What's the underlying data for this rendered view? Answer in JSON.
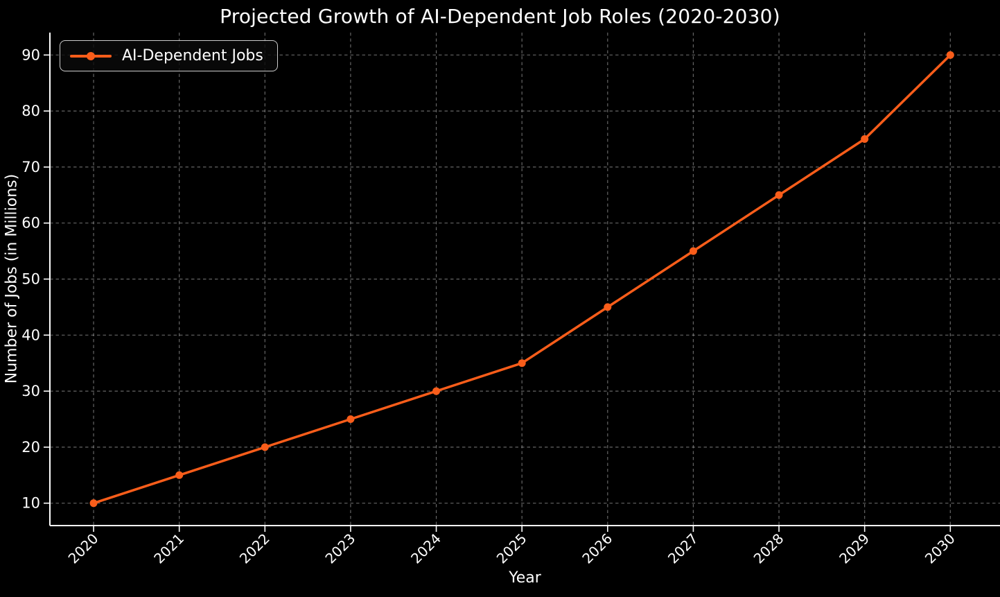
{
  "title": "Projected Growth of AI-Dependent Job Roles (2020-2030)",
  "legend": {
    "label": "AI-Dependent Jobs"
  },
  "chart_data": {
    "type": "line",
    "title": "Projected Growth of AI-Dependent Job Roles (2020-2030)",
    "xlabel": "Year",
    "ylabel": "Number of Jobs (in Millions)",
    "categories": [
      "2020",
      "2021",
      "2022",
      "2023",
      "2024",
      "2025",
      "2026",
      "2027",
      "2028",
      "2029",
      "2030"
    ],
    "series": [
      {
        "name": "AI-Dependent Jobs",
        "values": [
          10,
          15,
          20,
          25,
          30,
          35,
          45,
          55,
          65,
          75,
          90
        ]
      }
    ],
    "yticks": [
      10,
      20,
      30,
      40,
      50,
      60,
      70,
      80,
      90
    ],
    "xlim": [
      2019.49,
      2030.58
    ],
    "ylim": [
      6,
      94
    ],
    "x_numeric": [
      2020,
      2021,
      2022,
      2023,
      2024,
      2025,
      2026,
      2027,
      2028,
      2029,
      2030
    ],
    "grid": true,
    "grid_style": "dashed",
    "legend_position": "upper left",
    "x_tick_rotation_deg": 45,
    "colors": {
      "line": "#f95d1a",
      "marker": "#f95d1a",
      "background": "#000000",
      "text": "#ffffff",
      "grid": "#aaaaaa",
      "spine": "#ffffff",
      "legend_border": "#cccccc"
    }
  }
}
